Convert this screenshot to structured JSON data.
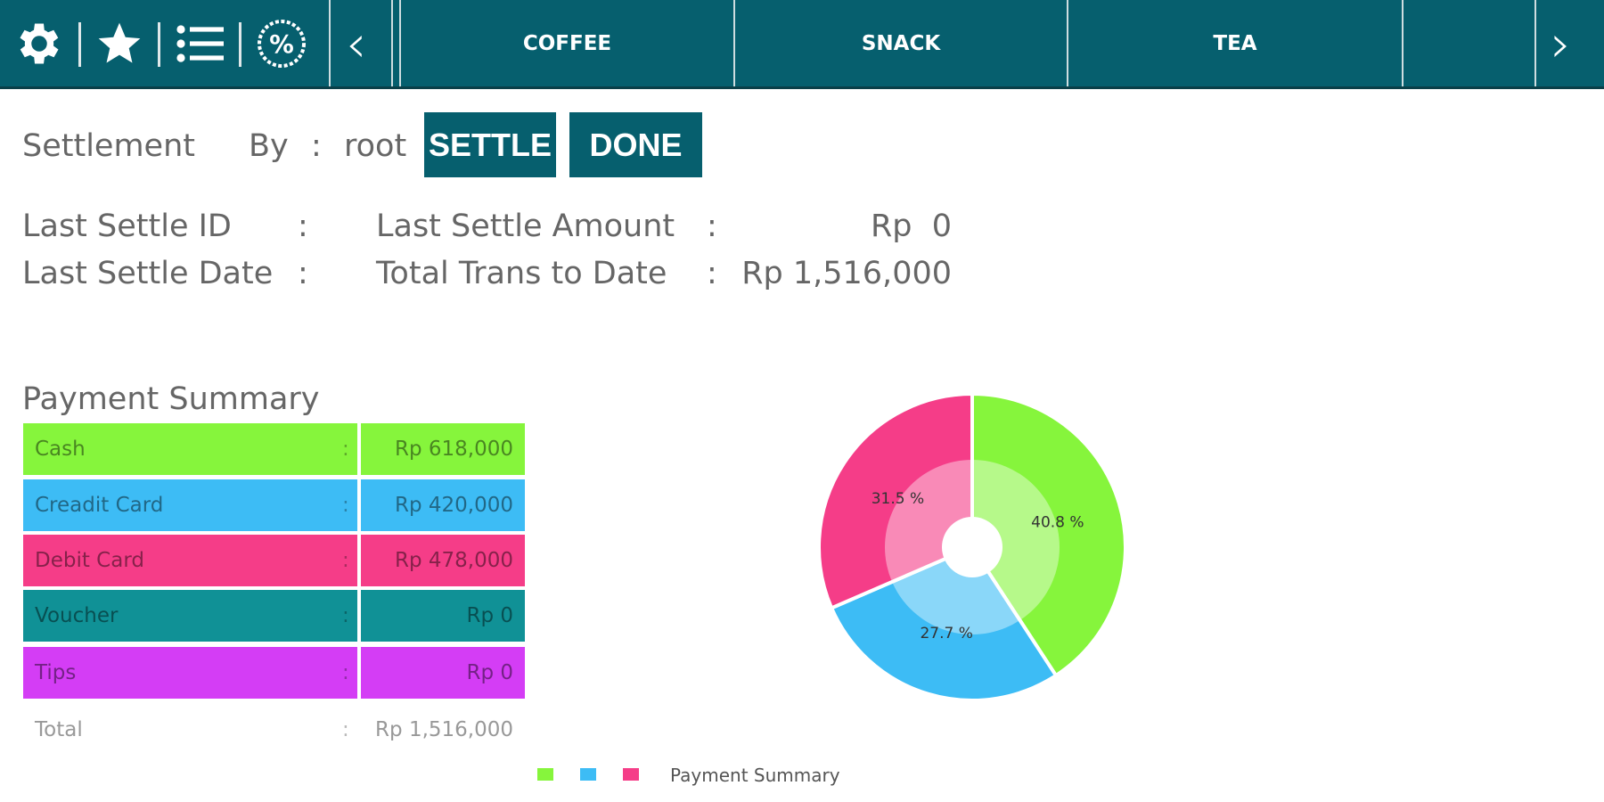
{
  "toolbar": {
    "icons": [
      "gear-icon",
      "star-icon",
      "list-icon",
      "discount-percent-icon"
    ],
    "prev_label": "‹",
    "next_label": "›",
    "tabs": [
      {
        "label": "COFFEE"
      },
      {
        "label": "SNACK"
      },
      {
        "label": "TEA"
      },
      {
        "label": ""
      }
    ]
  },
  "settlement": {
    "title": "Settlement",
    "by_label": "By",
    "colon": ":",
    "user": "root",
    "settle_button": "SETTLE",
    "done_button": "DONE"
  },
  "info": {
    "last_settle_id_label": "Last Settle ID",
    "last_settle_id_value": "",
    "last_settle_date_label": "Last Settle Date",
    "last_settle_date_value": "",
    "last_settle_amount_label": "Last Settle Amount",
    "last_settle_amount_value": "Rp  0",
    "total_trans_label": "Total Trans to Date",
    "total_trans_value": "Rp 1,516,000"
  },
  "payment_summary": {
    "title": "Payment Summary",
    "rows": [
      {
        "label": "Cash",
        "value": "Rp 618,000",
        "color": "#86f53c"
      },
      {
        "label": "Creadit Card",
        "value": "Rp 420,000",
        "color": "#3dbcf5"
      },
      {
        "label": "Debit Card",
        "value": "Rp 478,000",
        "color": "#f53d88"
      },
      {
        "label": "Voucher",
        "value": "Rp 0",
        "color": "#109196"
      },
      {
        "label": "Tips",
        "value": "Rp 0",
        "color": "#d43df5"
      }
    ],
    "total_label": "Total",
    "total_value": "Rp 1,516,000"
  },
  "chart_data": {
    "type": "pie",
    "categories": [
      "Cash",
      "Creadit Card",
      "Debit Card"
    ],
    "values": [
      40.8,
      27.7,
      31.5
    ],
    "labels": [
      "40.8 %",
      "27.7 %",
      "31.5 %"
    ],
    "colors": [
      "#86f53c",
      "#3dbcf5",
      "#f53d88"
    ],
    "legend_label": "Payment Summary",
    "legend_position": "bottom"
  }
}
